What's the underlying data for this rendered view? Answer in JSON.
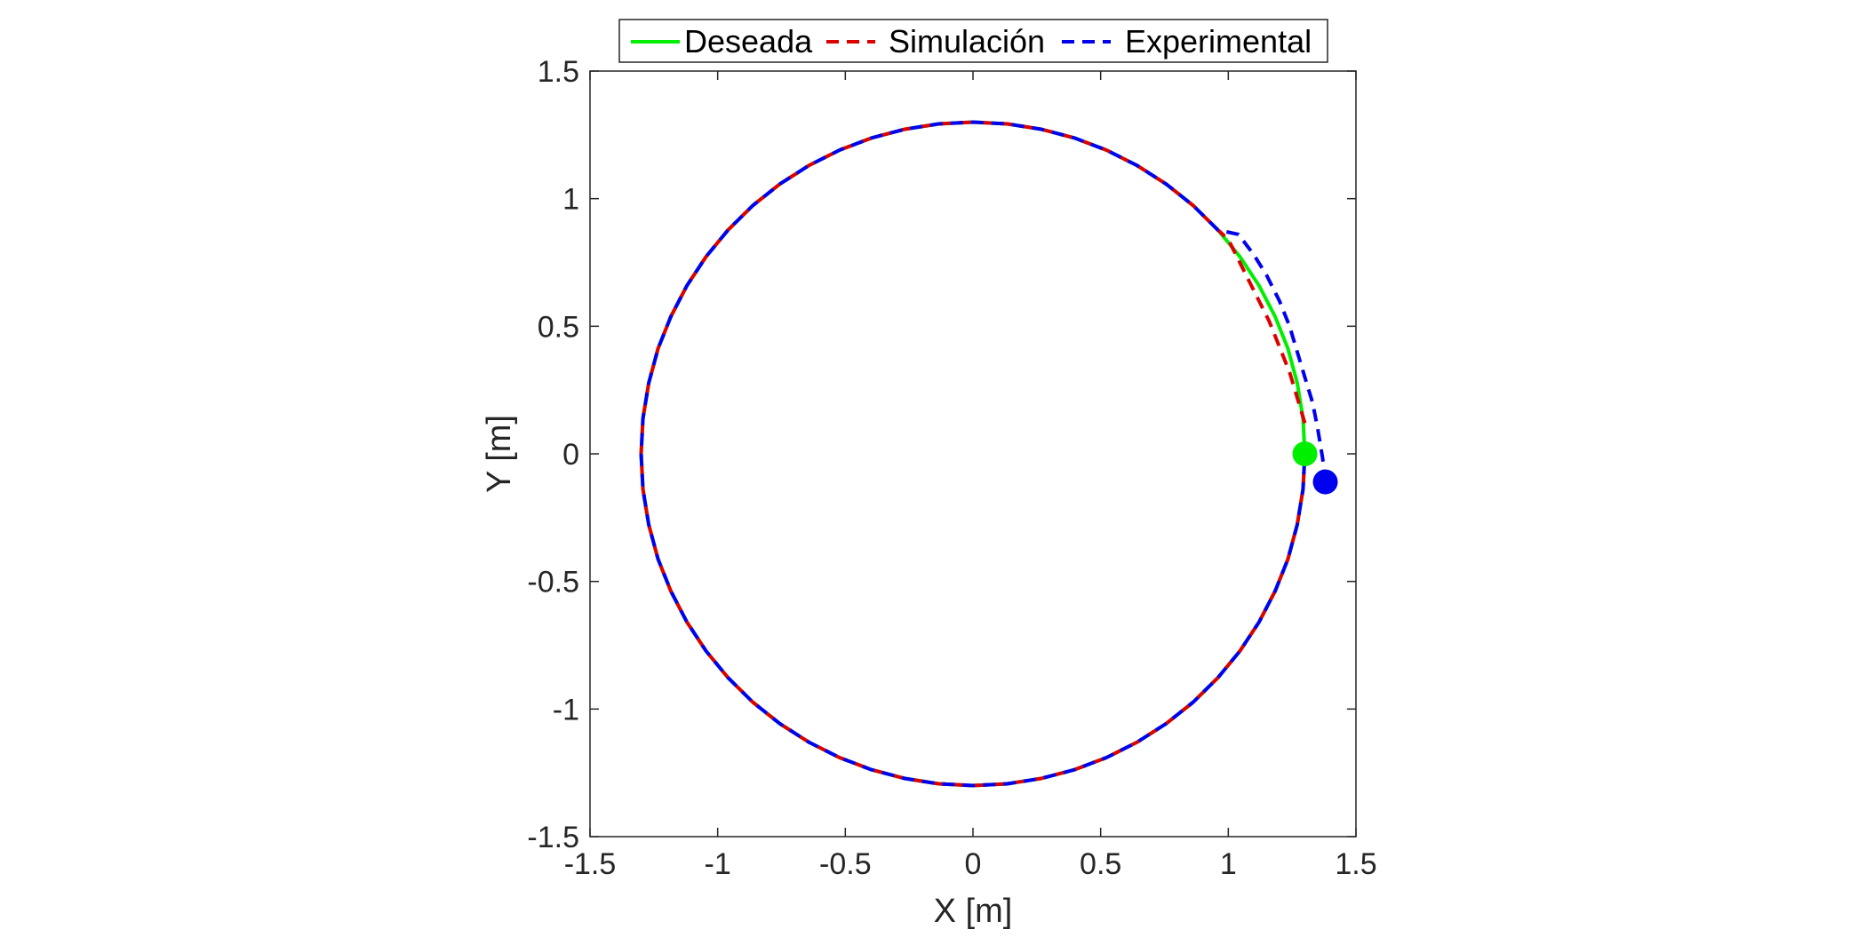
{
  "chart_data": {
    "type": "line",
    "xlabel": "X [m]",
    "ylabel": "Y [m]",
    "xlim": [
      -1.5,
      1.5
    ],
    "ylim": [
      -1.5,
      1.5
    ],
    "xticks": [
      "-1.5",
      "-1",
      "-0.5",
      "0",
      "0.5",
      "1",
      "1.5"
    ],
    "yticks": [
      "-1.5",
      "-1",
      "-0.5",
      "0",
      "0.5",
      "1",
      "1.5"
    ],
    "grid": false,
    "legend_position": "top",
    "series": [
      {
        "name": "Deseada",
        "color": "#00ee00",
        "style": "solid",
        "path": "circle of radius 1.3 centered at origin",
        "x": [
          1.3,
          1.2925,
          1.27,
          1.2334,
          1.1834,
          1.1206,
          1.0455,
          0.9593,
          0.8627,
          0.7569,
          0.6432,
          0.5227,
          0.3969,
          0.2671,
          0.1348,
          0.0,
          -0.1348,
          -0.2671,
          -0.3969,
          -0.5227,
          -0.6432,
          -0.7569,
          -0.8627,
          -0.9593,
          -1.0455,
          -1.1206,
          -1.1834,
          -1.2334,
          -1.27,
          -1.2925,
          -1.3,
          -1.2925,
          -1.27,
          -1.2334,
          -1.1834,
          -1.1206,
          -1.0455,
          -0.9593,
          -0.8627,
          -0.7569,
          -0.6432,
          -0.5227,
          -0.3969,
          -0.2671,
          -0.1348,
          0.0,
          0.1348,
          0.2671,
          0.3969,
          0.5227,
          0.6432,
          0.7569,
          0.8627,
          0.9593,
          1.0455,
          1.1206,
          1.1834,
          1.2334,
          1.27,
          1.2925,
          1.3
        ],
        "y": [
          0.0,
          0.1397,
          0.2779,
          0.4127,
          0.5382,
          0.6588,
          0.7726,
          0.8773,
          0.9726,
          1.0569,
          1.1297,
          1.1901,
          1.2379,
          1.2722,
          1.293,
          1.3,
          1.293,
          1.2722,
          1.2379,
          1.1901,
          1.1297,
          1.0569,
          0.9726,
          0.8773,
          0.7726,
          0.6588,
          0.5382,
          0.4127,
          0.2779,
          0.1397,
          0.0,
          -0.1397,
          -0.2779,
          -0.4127,
          -0.5382,
          -0.6588,
          -0.7726,
          -0.8773,
          -0.9726,
          -1.0569,
          -1.1297,
          -1.1901,
          -1.2379,
          -1.2722,
          -1.293,
          -1.3,
          -1.293,
          -1.2722,
          -1.2379,
          -1.1901,
          -1.1297,
          -1.0569,
          -0.9726,
          -0.8773,
          -0.7726,
          -0.6588,
          -0.5382,
          -0.4127,
          -0.2779,
          -0.1397,
          0.0
        ]
      },
      {
        "name": "Simulación",
        "color": "#dd0000",
        "style": "dashed",
        "x": [
          1.3,
          1.27,
          1.24,
          1.2,
          1.16,
          1.12,
          1.08,
          1.04,
          1.0,
          0.9593,
          0.8627,
          0.7569,
          0.6432,
          0.5227,
          0.3969,
          0.2671,
          0.1348,
          0.0,
          -0.1348,
          -0.2671,
          -0.3969,
          -0.5227,
          -0.6432,
          -0.7569,
          -0.8627,
          -0.9593,
          -1.0455,
          -1.1206,
          -1.1834,
          -1.2334,
          -1.27,
          -1.2925,
          -1.3,
          -1.2925,
          -1.27,
          -1.2334,
          -1.1834,
          -1.1206,
          -1.0455,
          -0.9593,
          -0.8627,
          -0.7569,
          -0.6432,
          -0.5227,
          -0.3969,
          -0.2671,
          -0.1348,
          0.0,
          0.1348,
          0.2671,
          0.3969,
          0.5227,
          0.6432,
          0.7569,
          0.8627,
          0.9593,
          1.0455,
          1.1206,
          1.1834,
          1.2334,
          1.27,
          1.2925,
          1.3
        ],
        "y": [
          0.12,
          0.22,
          0.32,
          0.42,
          0.52,
          0.6,
          0.68,
          0.76,
          0.84,
          0.8773,
          0.9726,
          1.0569,
          1.1297,
          1.1901,
          1.2379,
          1.2722,
          1.293,
          1.3,
          1.293,
          1.2722,
          1.2379,
          1.1901,
          1.1297,
          1.0569,
          0.9726,
          0.8773,
          0.7726,
          0.6588,
          0.5382,
          0.4127,
          0.2779,
          0.1397,
          0.0,
          -0.1397,
          -0.2779,
          -0.4127,
          -0.5382,
          -0.6588,
          -0.7726,
          -0.8773,
          -0.9726,
          -1.0569,
          -1.1297,
          -1.1901,
          -1.2379,
          -1.2722,
          -1.293,
          -1.3,
          -1.293,
          -1.2722,
          -1.2379,
          -1.1901,
          -1.1297,
          -1.0569,
          -0.9726,
          -0.8773,
          -0.7726,
          -0.6588,
          -0.5382,
          -0.4127,
          -0.2779,
          -0.1397,
          0.0
        ]
      },
      {
        "name": "Experimental",
        "color": "#0000ee",
        "style": "dashed",
        "x": [
          1.38,
          1.37,
          1.35,
          1.33,
          1.3,
          1.27,
          1.24,
          1.2,
          1.15,
          1.1,
          1.04,
          0.9593,
          0.8627,
          0.7569,
          0.6432,
          0.5227,
          0.3969,
          0.2671,
          0.1348,
          0.0,
          -0.1348,
          -0.2671,
          -0.3969,
          -0.5227,
          -0.6432,
          -0.7569,
          -0.8627,
          -0.9593,
          -1.0455,
          -1.1206,
          -1.1834,
          -1.2334,
          -1.27,
          -1.2925,
          -1.3,
          -1.2925,
          -1.27,
          -1.2334,
          -1.1834,
          -1.1206,
          -1.0455,
          -0.9593,
          -0.8627,
          -0.7569,
          -0.6432,
          -0.5227,
          -0.3969,
          -0.2671,
          -0.1348,
          0.0,
          0.1348,
          0.2671,
          0.3969,
          0.5227,
          0.6432,
          0.7569,
          0.8627,
          0.9593,
          1.0455,
          1.1206,
          1.1834,
          1.2334,
          1.27,
          1.2925,
          1.3
        ],
        "y": [
          -0.11,
          -0.02,
          0.1,
          0.2,
          0.3,
          0.4,
          0.5,
          0.6,
          0.7,
          0.78,
          0.86,
          0.8773,
          0.9726,
          1.0569,
          1.1297,
          1.1901,
          1.2379,
          1.2722,
          1.293,
          1.3,
          1.293,
          1.2722,
          1.2379,
          1.1901,
          1.1297,
          1.0569,
          0.9726,
          0.8773,
          0.7726,
          0.6588,
          0.5382,
          0.4127,
          0.2779,
          0.1397,
          0.0,
          -0.1397,
          -0.2779,
          -0.4127,
          -0.5382,
          -0.6588,
          -0.7726,
          -0.8773,
          -0.9726,
          -1.0569,
          -1.1297,
          -1.1901,
          -1.2379,
          -1.2722,
          -1.293,
          -1.3,
          -1.293,
          -1.2722,
          -1.2379,
          -1.1901,
          -1.1297,
          -1.0569,
          -0.9726,
          -0.8773,
          -0.7726,
          -0.6588,
          -0.5382,
          -0.4127,
          -0.2779,
          -0.1397,
          0.0
        ]
      }
    ],
    "markers": [
      {
        "name": "start-desired",
        "x": 1.3,
        "y": 0.0,
        "color": "#00ee00"
      },
      {
        "name": "start-experimental",
        "x": 1.38,
        "y": -0.11,
        "color": "#0000ee"
      }
    ]
  }
}
